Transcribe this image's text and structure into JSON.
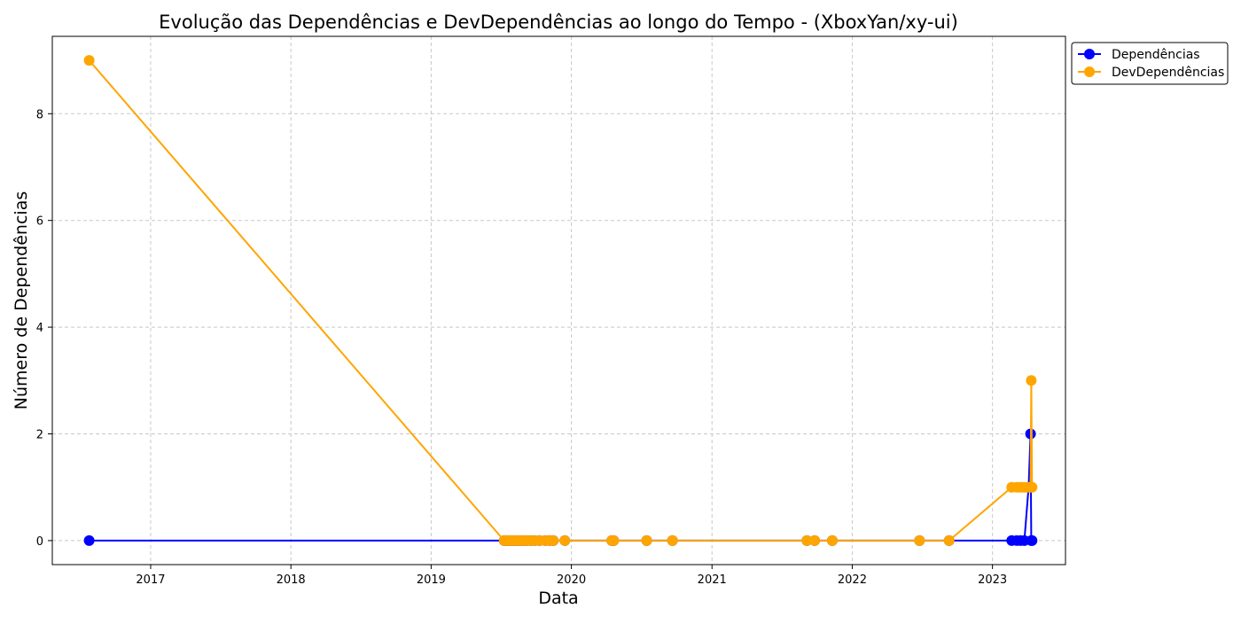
{
  "chart_data": {
    "type": "line",
    "title": "Evolução das Dependências e DevDependências ao longo do Tempo - (XboxYan/xy-ui)",
    "xlabel": "Data",
    "ylabel": "Número de Dependências",
    "x_ticks": [
      "2017",
      "2018",
      "2019",
      "2020",
      "2021",
      "2022",
      "2023"
    ],
    "y_ticks": [
      0,
      2,
      4,
      6,
      8
    ],
    "xlim": [
      "2016-04-20",
      "2023-07-10"
    ],
    "ylim": [
      -0.45,
      9.45
    ],
    "grid": true,
    "legend_position": "upper right, outside plot",
    "x": [
      "2016-07-25",
      "2019-07-10",
      "2019-07-15",
      "2019-07-20",
      "2019-07-26",
      "2019-08-01",
      "2019-08-08",
      "2019-08-15",
      "2019-08-22",
      "2019-08-30",
      "2019-09-08",
      "2019-09-18",
      "2019-09-28",
      "2019-10-10",
      "2019-10-25",
      "2019-11-05",
      "2019-11-15",
      "2019-12-15",
      "2020-04-15",
      "2020-04-20",
      "2020-07-15",
      "2020-09-20",
      "2021-09-05",
      "2021-09-25",
      "2021-11-10",
      "2022-06-25",
      "2022-09-10",
      "2023-02-20",
      "2023-03-05",
      "2023-03-15",
      "2023-03-25",
      "2023-04-05",
      "2023-04-10",
      "2023-04-12",
      "2023-04-14"
    ],
    "series": [
      {
        "name": "Dependências",
        "color": "#0000ff",
        "values": [
          0,
          0,
          0,
          0,
          0,
          0,
          0,
          0,
          0,
          0,
          0,
          0,
          0,
          0,
          0,
          0,
          0,
          0,
          0,
          0,
          0,
          0,
          0,
          0,
          0,
          0,
          0,
          0,
          0,
          0,
          0,
          1,
          2,
          0,
          0
        ]
      },
      {
        "name": "DevDependências",
        "color": "#ffa500",
        "values": [
          9,
          0,
          0,
          0,
          0,
          0,
          0,
          0,
          0,
          0,
          0,
          0,
          0,
          0,
          0,
          0,
          0,
          0,
          0,
          0,
          0,
          0,
          0,
          0,
          0,
          0,
          0,
          1,
          1,
          1,
          1,
          1,
          1,
          3,
          1
        ]
      }
    ]
  }
}
